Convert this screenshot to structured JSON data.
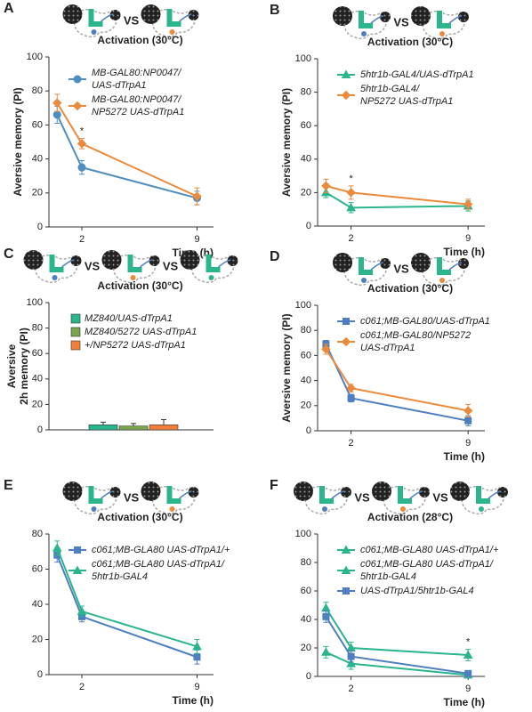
{
  "chart_data": [
    {
      "type": "line",
      "panel_label": "A",
      "diagram_labels": [
        "VS"
      ],
      "title": "Activation (30°C)",
      "y_label": "Aversive memory (PI)",
      "x_label": "Time (h)",
      "x": [
        0.5,
        2,
        9
      ],
      "xlim": [
        0,
        10
      ],
      "xticks": [
        2,
        9
      ],
      "ylim": [
        0,
        100
      ],
      "yticks": [
        0,
        20,
        40,
        60,
        80,
        100
      ],
      "series": [
        {
          "name": "MB-GAL80:NP0047/\nUAS-dTrpA1",
          "color": "#4f8dbf",
          "marker": "circle",
          "values": [
            66,
            35,
            17
          ],
          "errors": [
            5,
            4,
            4
          ]
        },
        {
          "name": "MB-GAL80:NP0047/\nNP5272 UAS-dTrpA1",
          "color": "#ea8a3c",
          "marker": "diamond",
          "values": [
            73,
            49,
            18
          ],
          "errors": [
            5,
            3,
            5
          ]
        }
      ],
      "annotations": [
        {
          "text": "*",
          "x": 2
        }
      ]
    },
    {
      "type": "line",
      "panel_label": "B",
      "diagram_labels": [
        "VS"
      ],
      "title": "Activation (30°C)",
      "y_label": "Aversive memory (PI)",
      "x_label": "Time (h)",
      "x": [
        0.5,
        2,
        9
      ],
      "xlim": [
        0,
        10
      ],
      "xticks": [
        2,
        9
      ],
      "ylim": [
        0,
        100
      ],
      "yticks": [
        0,
        20,
        40,
        60,
        80,
        100
      ],
      "series": [
        {
          "name": "5htr1b-GAL4/UAS-dTrpA1",
          "color": "#2bb58d",
          "marker": "triangle",
          "values": [
            20,
            11,
            12
          ],
          "errors": [
            3,
            3,
            3
          ]
        },
        {
          "name": "5htr1b-GAL4/\nNP5272 UAS-dTrpA1",
          "color": "#ea8a3c",
          "marker": "diamond",
          "values": [
            24,
            20,
            13
          ],
          "errors": [
            4,
            4,
            3
          ]
        }
      ],
      "annotations": [
        {
          "text": "*",
          "x": 2
        }
      ]
    },
    {
      "type": "bar",
      "panel_label": "C",
      "diagram_labels": [
        "VS",
        "VS"
      ],
      "title": "Activation (30°C)",
      "y_label": "Aversive\n2h memory (PI)",
      "ylim": [
        0,
        100
      ],
      "yticks": [
        0,
        20,
        40,
        60,
        80,
        100
      ],
      "series": [
        {
          "name": "MZ840/UAS-dTrpA1",
          "color": "#2bb58d",
          "values": [
            4
          ],
          "errors": [
            2
          ]
        },
        {
          "name": "MZ840/5272 UAS-dTrpA1",
          "color": "#7aa54c",
          "values": [
            3
          ],
          "errors": [
            2
          ]
        },
        {
          "name": "+/NP5272 UAS-dTrpA1",
          "color": "#ef7f3a",
          "values": [
            4
          ],
          "errors": [
            4
          ]
        }
      ]
    },
    {
      "type": "line",
      "panel_label": "D",
      "diagram_labels": [
        "VS"
      ],
      "title": "Activation (30°C)",
      "y_label": "Aversive memory (PI)",
      "x_label": "Time (h)",
      "x": [
        0.5,
        2,
        9
      ],
      "xlim": [
        0,
        10
      ],
      "xticks": [
        2,
        9
      ],
      "ylim": [
        0,
        100
      ],
      "yticks": [
        0,
        20,
        40,
        60,
        80,
        100
      ],
      "series": [
        {
          "name": "c061;MB-GAL80/UAS-dTrpA1",
          "color": "#4f7fc0",
          "marker": "square",
          "values": [
            69,
            26,
            8
          ],
          "errors": [
            3,
            3,
            4
          ]
        },
        {
          "name": "c061;MB-GAL80/NP5272\nUAS-dTrpA1",
          "color": "#ea8a3c",
          "marker": "diamond",
          "values": [
            65,
            34,
            16
          ],
          "errors": [
            4,
            3,
            5
          ]
        }
      ]
    },
    {
      "type": "line",
      "panel_label": "E",
      "diagram_labels": [
        "VS"
      ],
      "title": "Activation (30°C)",
      "x_label": "Time (h)",
      "x": [
        0.5,
        2,
        9
      ],
      "xlim": [
        0,
        10
      ],
      "xticks": [
        2,
        9
      ],
      "ylim": [
        0,
        80
      ],
      "yticks": [
        0,
        20,
        40,
        60,
        80
      ],
      "series": [
        {
          "name": "c061;MB-GLA80 UAS-dTrpA1/+",
          "color": "#4f7fc0",
          "marker": "square",
          "values": [
            68,
            33,
            10
          ],
          "errors": [
            4,
            3,
            4
          ]
        },
        {
          "name": "c061;MB-GLA80 UAS-dTrpA1/\n5htr1b-GAL4",
          "color": "#2bb58d",
          "marker": "triangle",
          "values": [
            72,
            36,
            16
          ],
          "errors": [
            4,
            3,
            4
          ]
        }
      ]
    },
    {
      "type": "line",
      "panel_label": "F",
      "diagram_labels": [
        "VS",
        "VS"
      ],
      "title": "Activation (28°C)",
      "x_label": "Time (h)",
      "x": [
        0.5,
        2,
        9
      ],
      "xlim": [
        0,
        10
      ],
      "xticks": [
        2,
        9
      ],
      "ylim": [
        0,
        100
      ],
      "yticks": [
        0,
        20,
        40,
        60,
        80,
        100
      ],
      "series": [
        {
          "name": "c061;MB-GLA80 UAS-dTrpA1/+",
          "color": "#2bb58d",
          "marker": "triangle",
          "values": [
            17,
            9,
            1
          ],
          "errors": [
            4,
            4,
            2
          ]
        },
        {
          "name": "c061;MB-GLA80 UAS-dTrpA1/\n5htr1b-GAL4",
          "color": "#2bb58d",
          "marker": "triangle",
          "values": [
            48,
            20,
            15
          ],
          "errors": [
            4,
            4,
            4
          ]
        },
        {
          "name": "UAS-dTrpA1/5htr1b-GAL4",
          "color": "#4f7fc0",
          "marker": "square",
          "values": [
            42,
            14,
            2
          ],
          "errors": [
            4,
            4,
            2
          ]
        }
      ],
      "annotations": [
        {
          "text": "*",
          "x": 9
        }
      ]
    }
  ]
}
